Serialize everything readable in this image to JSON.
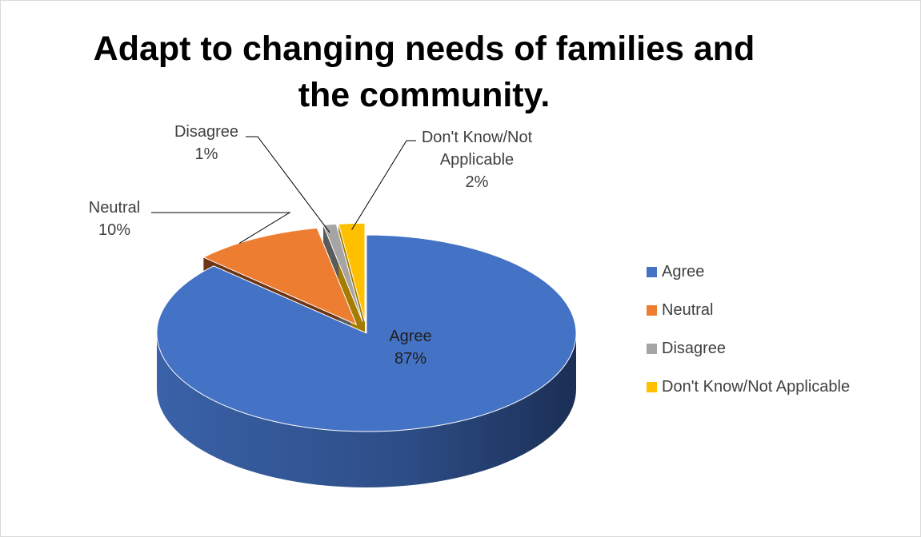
{
  "chart_data": {
    "type": "pie",
    "title": "Adapt to changing needs of families and the community.",
    "categories": [
      "Agree",
      "Neutral",
      "Disagree",
      "Don't Know/Not Applicable"
    ],
    "values": [
      87,
      10,
      1,
      2
    ],
    "value_labels": [
      "87%",
      "10%",
      "1%",
      "2%"
    ],
    "label_lines": {
      "Agree": [
        "Agree",
        "87%"
      ],
      "Neutral": [
        "Neutral",
        "10%"
      ],
      "Disagree": [
        "Disagree",
        "1%"
      ],
      "Dont": [
        "Don't Know/Not",
        "Applicable",
        "2%"
      ]
    },
    "colors": [
      "#4472C4",
      "#ED7D31",
      "#A5A5A5",
      "#FFC000"
    ],
    "legend_position": "right",
    "style": "3d-exploded"
  }
}
